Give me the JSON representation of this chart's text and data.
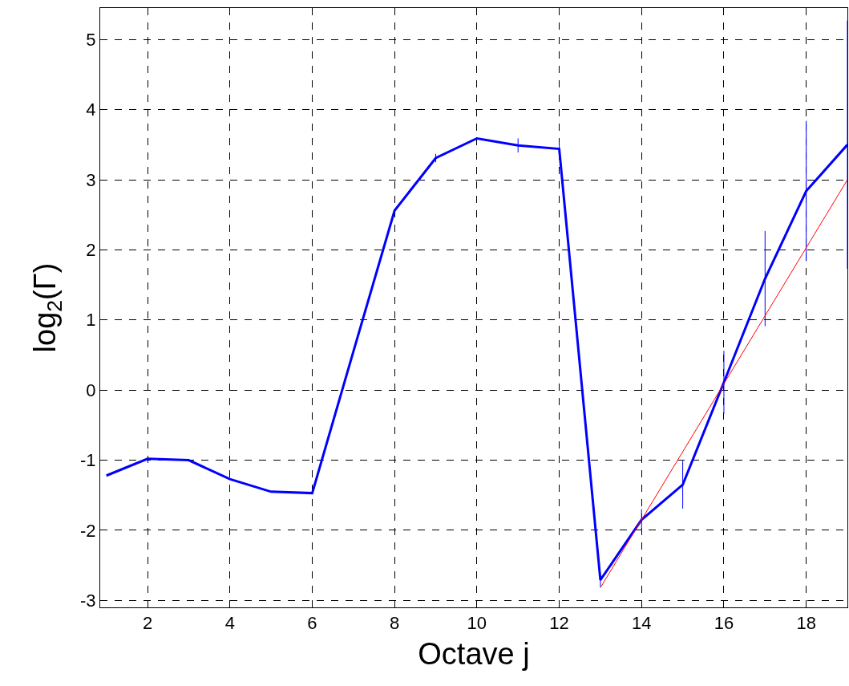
{
  "chart_data": {
    "type": "line",
    "xlabel": "Octave j",
    "ylabel": "log$_{2}$(Γ)",
    "xlim": [
      0.85,
      19
    ],
    "ylim": [
      -3.1,
      5.45
    ],
    "xticks": [
      2,
      4,
      6,
      8,
      10,
      12,
      14,
      16,
      18
    ],
    "yticks": [
      -3,
      -2,
      -1,
      0,
      1,
      2,
      3,
      4,
      5
    ],
    "grid": true,
    "marker": "none",
    "series": [
      {
        "color": "#0000ff",
        "x": [
          1,
          2,
          3,
          4,
          5,
          6,
          7,
          8,
          9,
          10,
          11,
          12,
          13,
          14,
          15,
          16,
          17,
          18,
          19
        ],
        "values": [
          -1.22,
          -0.98,
          -1.0,
          -1.27,
          -1.45,
          -1.47,
          0.55,
          2.56,
          3.31,
          3.59,
          3.49,
          3.44,
          -2.71,
          -1.85,
          -1.35,
          0.11,
          1.59,
          2.84,
          3.5
        ],
        "errors": [
          null,
          null,
          null,
          null,
          null,
          null,
          null,
          null,
          0.06,
          null,
          0.1,
          0.1,
          0.1,
          0.15,
          0.34,
          0.45,
          0.68,
          1.0,
          1.77
        ]
      },
      {
        "color": "#ff0000",
        "x": [
          13,
          19
        ],
        "values": [
          -2.82,
          3.0
        ]
      }
    ]
  }
}
